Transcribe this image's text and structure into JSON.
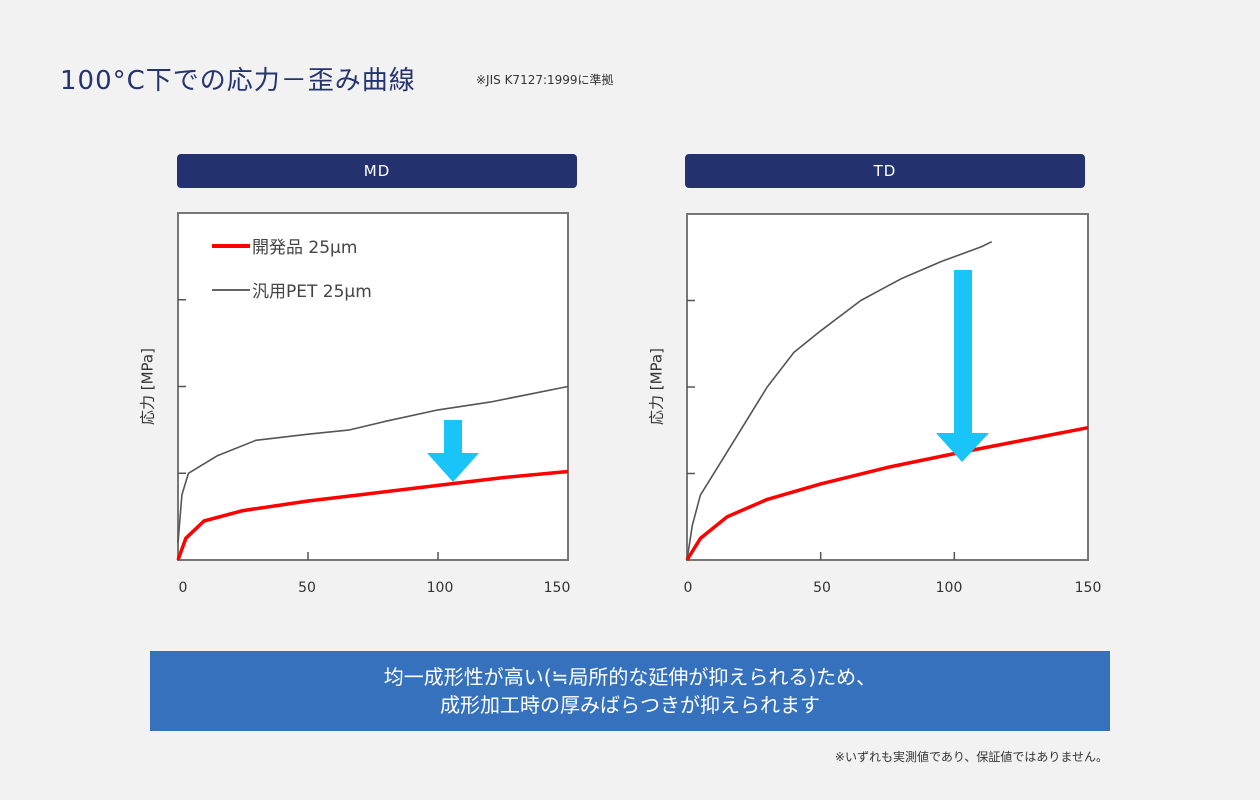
{
  "page": {
    "title": "100°C下での応力－歪み曲線",
    "standard_note": "※JIS K7127:1999に準拠",
    "banner_lines": [
      "均一成形性が高い(≒局所的な延伸が抑えられる)ため、",
      "成形加工時の厚みばらつきが抑えられます"
    ],
    "footnote": "※いずれも実測値であり、保証値ではありません。"
  },
  "colors": {
    "title": "#24346e",
    "header_bg": "#243370",
    "banner_bg": "#3671bd",
    "developed_line": "#ff0000",
    "generic_line": "#555555",
    "arrow": "#18c4f8",
    "background": "#f2f2f2"
  },
  "legend": {
    "developed": "開発品 25μm",
    "generic": "汎用PET  25μm"
  },
  "charts": [
    {
      "header": "MD",
      "ylabel": "応力 [MPa]",
      "xticks": [
        "0",
        "50",
        "100",
        "150"
      ]
    },
    {
      "header": "TD",
      "ylabel": "応力 [MPa]",
      "xticks": [
        "0",
        "50",
        "100",
        "150"
      ]
    }
  ],
  "chart_data": [
    {
      "type": "line",
      "title": "MD",
      "xlabel": "",
      "ylabel": "応力 [MPa]",
      "xlim": [
        0,
        150
      ],
      "xticks": [
        0,
        50,
        100,
        150
      ],
      "ylim": [
        0,
        4
      ],
      "yticks_unlabeled": [
        1,
        2,
        3
      ],
      "y_units_note": "values in unlabeled tick divisions",
      "grid": false,
      "legend_position": "upper left",
      "annotations": [
        "downward arrow from 汎用PET curve toward 開発品 curve near x≈105"
      ],
      "series": [
        {
          "name": "開発品 25μm",
          "color": "#ff0000",
          "x": [
            0,
            3,
            10,
            25,
            50,
            75,
            100,
            125,
            150
          ],
          "y": [
            0,
            0.25,
            0.45,
            0.57,
            0.68,
            0.77,
            0.86,
            0.95,
            1.02
          ]
        },
        {
          "name": "汎用PET  25μm",
          "color": "#555555",
          "x": [
            0,
            1.5,
            4,
            15,
            30,
            50,
            66,
            80,
            100,
            120,
            150
          ],
          "y": [
            0.2,
            0.75,
            1.0,
            1.2,
            1.38,
            1.45,
            1.5,
            1.6,
            1.73,
            1.82,
            2.0
          ]
        }
      ]
    },
    {
      "type": "line",
      "title": "TD",
      "xlabel": "",
      "ylabel": "応力 [MPa]",
      "xlim": [
        0,
        150
      ],
      "xticks": [
        0,
        50,
        100,
        150
      ],
      "ylim": [
        0,
        4
      ],
      "yticks_unlabeled": [
        1,
        2,
        3
      ],
      "y_units_note": "values in unlabeled tick divisions",
      "grid": false,
      "legend_position": "none",
      "annotations": [
        "long downward arrow from 汎用PET curve toward 開発品 curve near x≈102"
      ],
      "series": [
        {
          "name": "開発品 25μm",
          "color": "#ff0000",
          "x": [
            0,
            5,
            15,
            30,
            50,
            75,
            100,
            125,
            150
          ],
          "y": [
            0,
            0.25,
            0.5,
            0.7,
            0.88,
            1.07,
            1.23,
            1.38,
            1.53
          ]
        },
        {
          "name": "汎用PET  25μm",
          "color": "#555555",
          "x": [
            0,
            2,
            5,
            12,
            20,
            30,
            40,
            50,
            65,
            80,
            95,
            110,
            114
          ],
          "y": [
            0,
            0.4,
            0.75,
            1.1,
            1.5,
            2.0,
            2.4,
            2.65,
            3.0,
            3.25,
            3.45,
            3.62,
            3.68
          ]
        }
      ]
    }
  ]
}
